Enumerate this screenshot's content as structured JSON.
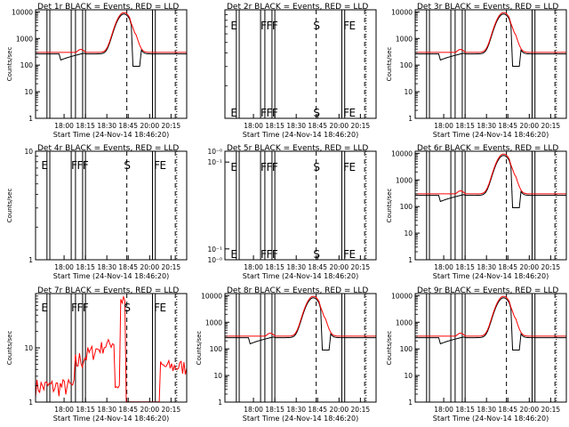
{
  "chart_data": [
    {
      "id": 1,
      "type": "line",
      "title": "Det 1r BLACK = Events, RED = LLD",
      "xlabel": "Start Time (24-Nov-14 18:46:20)",
      "ylabel": "Counts/sec",
      "scale": "log",
      "ylim": [
        1,
        12000
      ],
      "yticks": [
        {
          "v": 1,
          "label": "1"
        },
        {
          "v": 10,
          "label": "10"
        },
        {
          "v": 100,
          "label": "100"
        },
        {
          "v": 1000,
          "label": "1000"
        },
        {
          "v": 10000,
          "label": "10000"
        }
      ],
      "flags": [],
      "has_data": true,
      "profile": "peak"
    },
    {
      "id": 2,
      "type": "line",
      "title": "Det 2r BLACK = Events, RED = LLD",
      "xlabel": "Start Time (24-Nov-14 18:46:20)",
      "ylabel": "",
      "scale": "log",
      "ylim": [
        1,
        10
      ],
      "yticks": [],
      "flags": [
        "E",
        "F",
        "F",
        "F",
        "S",
        "F",
        "E"
      ],
      "has_data": false,
      "profile": "none"
    },
    {
      "id": 3,
      "type": "line",
      "title": "Det 3r BLACK = Events, RED = LLD",
      "xlabel": "Start Time (24-Nov-14 18:46:20)",
      "ylabel": "Counts/sec",
      "scale": "log",
      "ylim": [
        1,
        12000
      ],
      "yticks": [
        {
          "v": 1,
          "label": "1"
        },
        {
          "v": 10,
          "label": "10"
        },
        {
          "v": 100,
          "label": "100"
        },
        {
          "v": 1000,
          "label": "1000"
        },
        {
          "v": 10000,
          "label": "10000"
        }
      ],
      "flags": [],
      "has_data": true,
      "profile": "peak"
    },
    {
      "id": 4,
      "type": "line",
      "title": "Det 4r BLACK = Events, RED = LLD",
      "xlabel": "Start Time (24-Nov-14 18:46:20)",
      "ylabel": "Counts/sec",
      "scale": "log",
      "ylim": [
        1,
        10
      ],
      "yticks": [
        {
          "v": 1,
          "label": "1"
        },
        {
          "v": 10,
          "label": "10"
        }
      ],
      "flags": [
        "E",
        "F",
        "F",
        "F",
        "S",
        "F",
        "E"
      ],
      "has_data": false,
      "profile": "none"
    },
    {
      "id": 5,
      "type": "line",
      "title": "Det 5r BLACK = Events, RED = LLD",
      "xlabel": "Start Time (24-Nov-14 18:46:20)",
      "ylabel": "",
      "scale": "linear",
      "ylim": [
        0,
        1
      ],
      "yticks": [
        {
          "frac": 0.0,
          "label": "10⁻⁰"
        },
        {
          "frac": 0.1,
          "label": "10⁻¹"
        },
        {
          "frac": 0.9,
          "label": "10⁻¹"
        },
        {
          "frac": 1.0,
          "label": "10⁻⁰"
        }
      ],
      "flags": [
        "E",
        "F",
        "F",
        "F",
        "S",
        "F",
        "E"
      ],
      "has_data": false,
      "profile": "none"
    },
    {
      "id": 6,
      "type": "line",
      "title": "Det 6r BLACK = Events, RED = LLD",
      "xlabel": "Start Time (24-Nov-14 18:46:20)",
      "ylabel": "Counts/sec",
      "scale": "log",
      "ylim": [
        1,
        12000
      ],
      "yticks": [
        {
          "v": 1,
          "label": "1"
        },
        {
          "v": 10,
          "label": "10"
        },
        {
          "v": 100,
          "label": "100"
        },
        {
          "v": 1000,
          "label": "1000"
        },
        {
          "v": 10000,
          "label": "10000"
        }
      ],
      "flags": [],
      "has_data": true,
      "profile": "peak"
    },
    {
      "id": 7,
      "type": "line",
      "title": "Det 7r BLACK = Events, RED = LLD",
      "xlabel": "Start Time (24-Nov-14 18:46:20)",
      "ylabel": "Counts/sec",
      "scale": "log",
      "ylim": [
        1,
        100
      ],
      "yticks": [
        {
          "v": 1,
          "label": "1"
        },
        {
          "v": 10,
          "label": "10"
        }
      ],
      "flags": [
        "E",
        "F",
        "F",
        "F",
        "S",
        "F",
        "E"
      ],
      "has_data": true,
      "profile": "noise"
    },
    {
      "id": 8,
      "type": "line",
      "title": "Det 8r BLACK = Events, RED = LLD",
      "xlabel": "Start Time (24-Nov-14 18:46:20)",
      "ylabel": "Counts/sec",
      "scale": "log",
      "ylim": [
        1,
        12000
      ],
      "yticks": [
        {
          "v": 1,
          "label": "1"
        },
        {
          "v": 10,
          "label": "10"
        },
        {
          "v": 100,
          "label": "100"
        },
        {
          "v": 1000,
          "label": "1000"
        },
        {
          "v": 10000,
          "label": "10000"
        }
      ],
      "flags": [],
      "has_data": true,
      "profile": "peak"
    },
    {
      "id": 9,
      "type": "line",
      "title": "Det 9r BLACK = Events, RED = LLD",
      "xlabel": "Start Time (24-Nov-14 18:46:20)",
      "ylabel": "Counts/sec",
      "scale": "log",
      "ylim": [
        1,
        12000
      ],
      "yticks": [
        {
          "v": 1,
          "label": "1"
        },
        {
          "v": 10,
          "label": "10"
        },
        {
          "v": 100,
          "label": "100"
        },
        {
          "v": 1000,
          "label": "1000"
        },
        {
          "v": 10000,
          "label": "10000"
        }
      ],
      "flags": [],
      "has_data": true,
      "profile": "peak"
    }
  ],
  "time_axis": {
    "xlim": [
      "17:40",
      "20:26"
    ],
    "ticks": [
      "18:00",
      "18:15",
      "18:30",
      "18:45",
      "20:00",
      "20:15"
    ],
    "solid_markers": [
      "17:48",
      "17:50",
      "18:05",
      "18:08",
      "18:13",
      "18:15",
      "20:02",
      "20:04"
    ],
    "dashed_markers": [
      "18:44",
      "20:18"
    ],
    "dotted_markers": [
      "20:19"
    ],
    "flag_times": [
      "17:44",
      "18:05",
      "18:09",
      "18:13",
      "18:42",
      "20:03",
      "20:07"
    ]
  },
  "colors": {
    "events": "#000000",
    "lld": "#ff0000",
    "axes": "#000000",
    "background": "#ffffff"
  }
}
